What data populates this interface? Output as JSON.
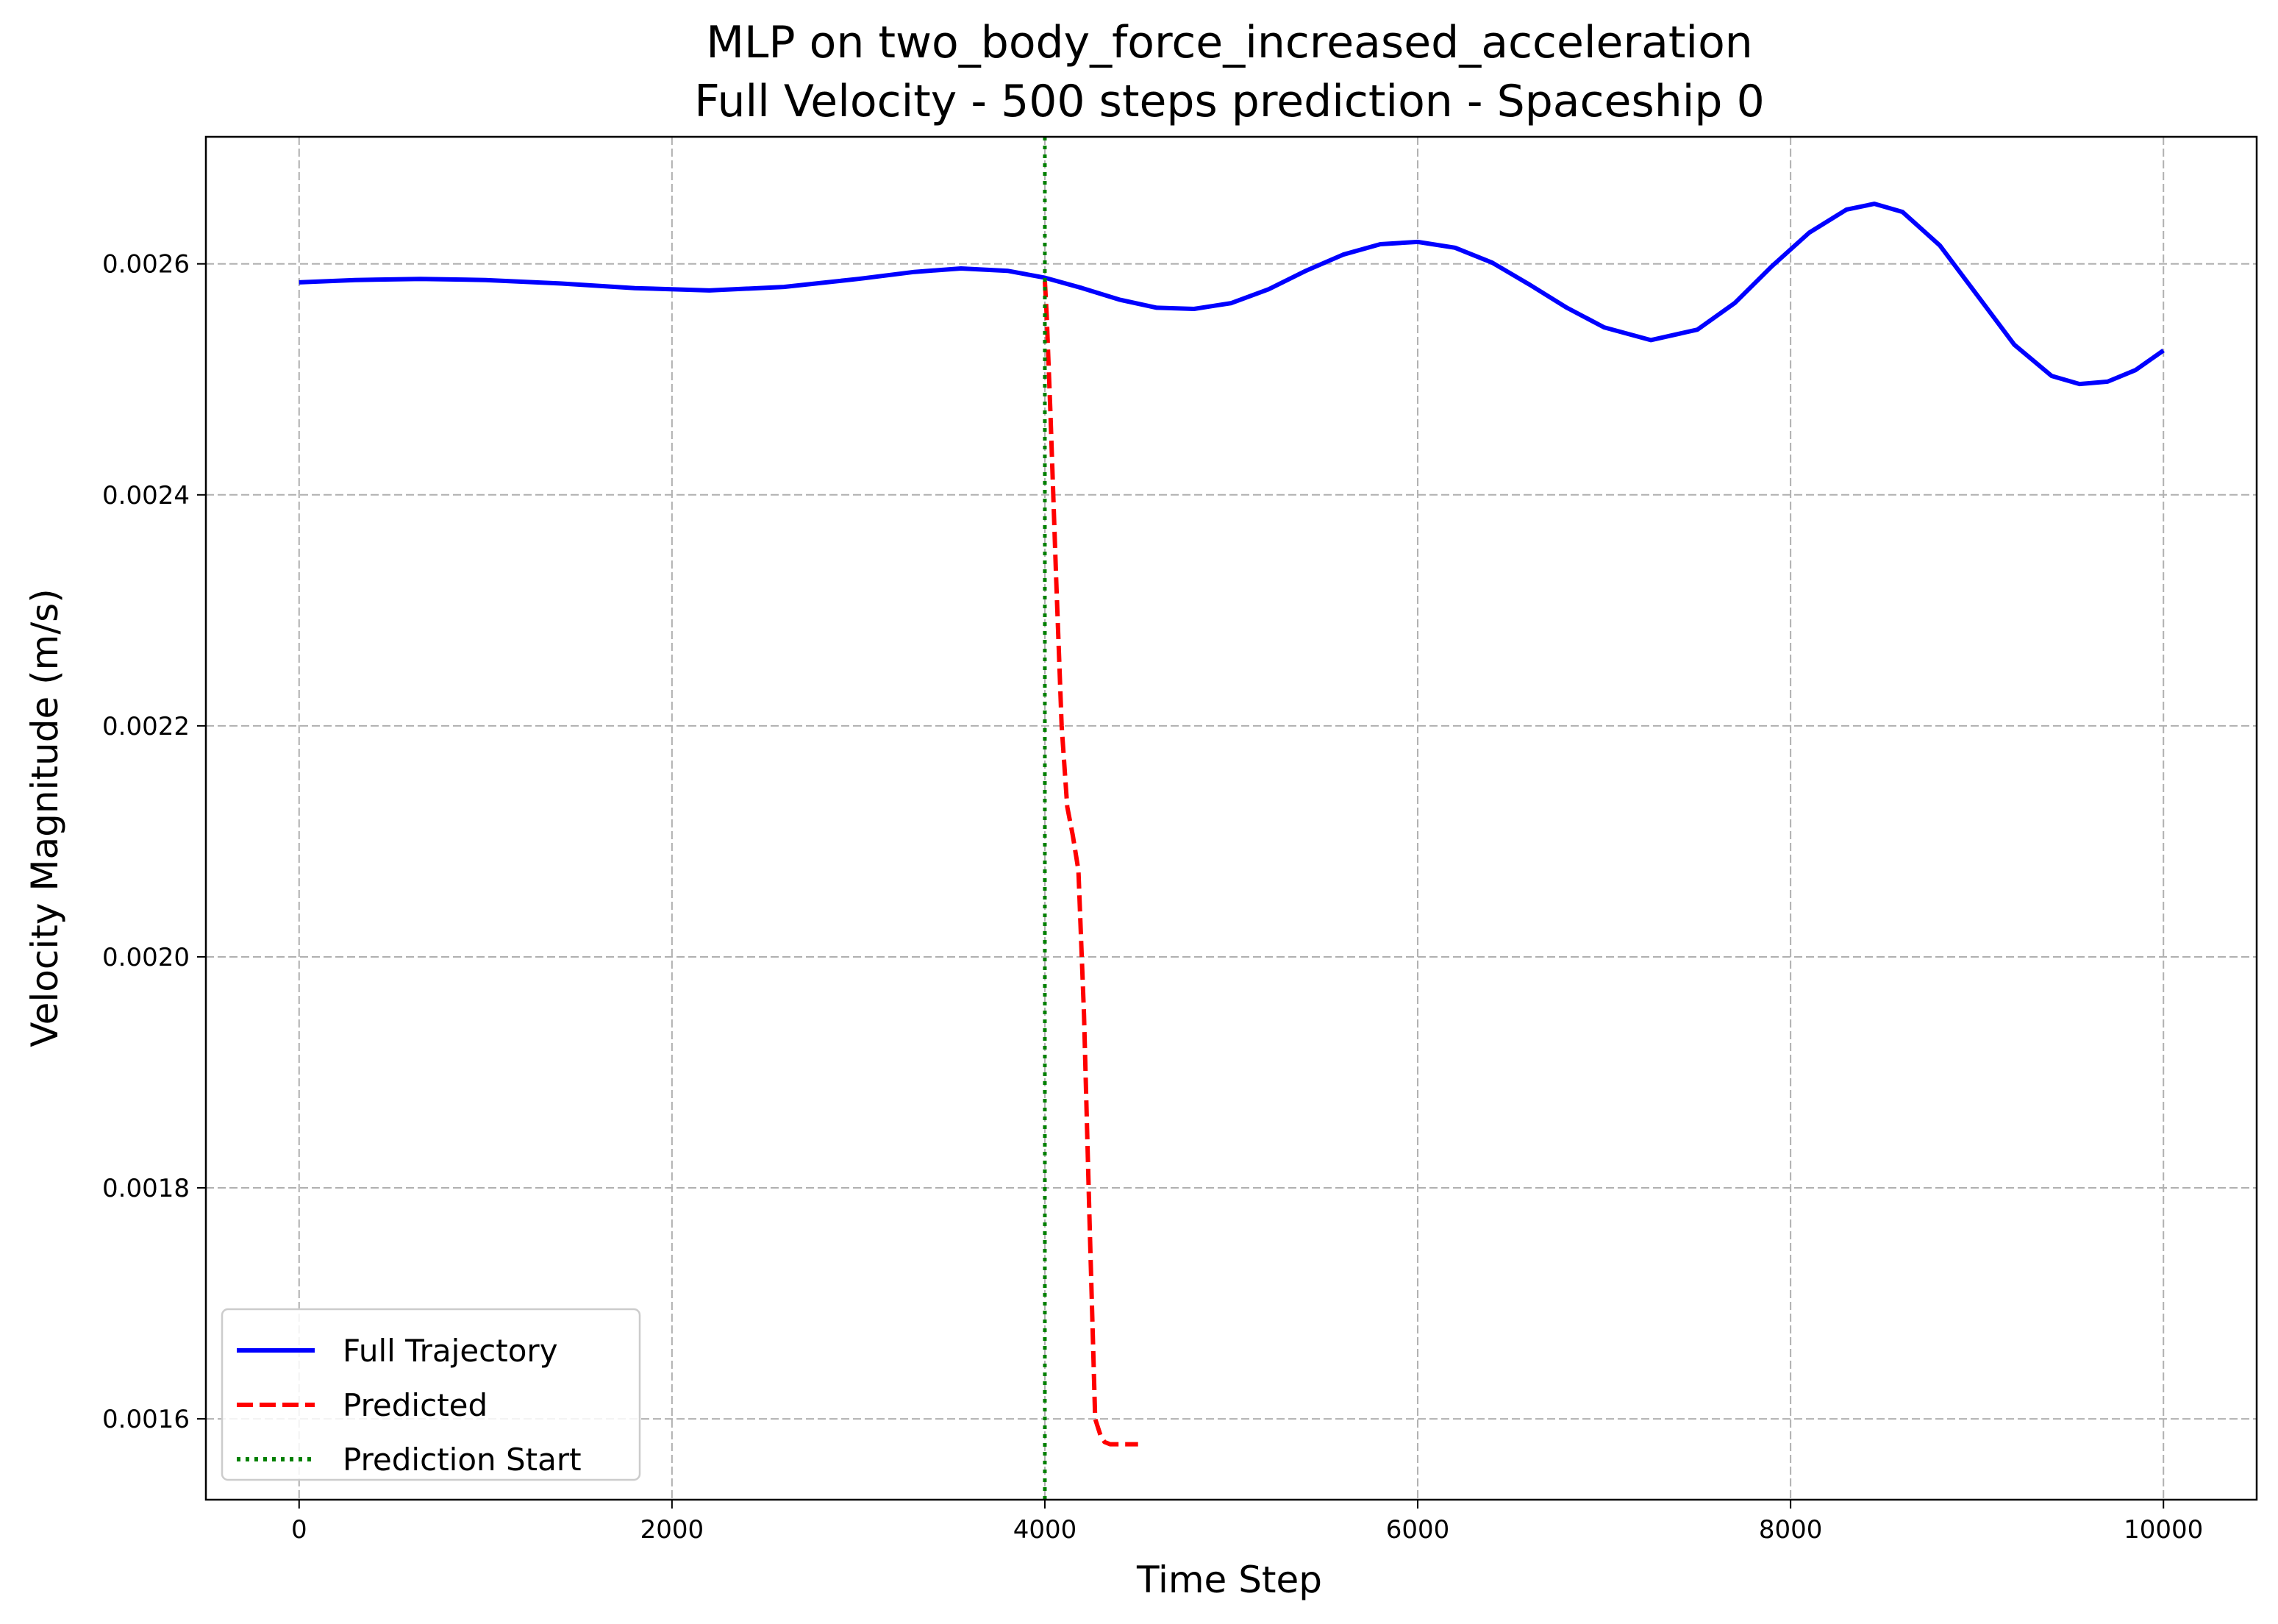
{
  "chart_data": {
    "type": "line",
    "title_line1": "MLP on two_body_force_increased_acceleration",
    "title_line2": "Full Velocity - 500 steps prediction - Spaceship 0",
    "xlabel": "Time Step",
    "ylabel": "Velocity Magnitude (m/s)",
    "xlim": [
      -500,
      10500
    ],
    "ylim": [
      0.00153,
      0.00271
    ],
    "xticks": [
      0,
      2000,
      4000,
      6000,
      8000,
      10000
    ],
    "xtick_labels": [
      "0",
      "2000",
      "4000",
      "6000",
      "8000",
      "10000"
    ],
    "yticks": [
      0.0016,
      0.0018,
      0.002,
      0.0022,
      0.0024,
      0.0026
    ],
    "ytick_labels": [
      "0.0016",
      "0.0018",
      "0.0020",
      "0.0022",
      "0.0024",
      "0.0026"
    ],
    "grid": true,
    "legend_position": "lower-left",
    "series": [
      {
        "name": "Full Trajectory",
        "color": "#0000ff",
        "style": "solid",
        "x": [
          0,
          300,
          650,
          1000,
          1400,
          1800,
          2200,
          2600,
          3000,
          3300,
          3550,
          3800,
          4000,
          4200,
          4400,
          4600,
          4800,
          5000,
          5200,
          5400,
          5600,
          5800,
          6000,
          6200,
          6400,
          6600,
          6800,
          7000,
          7250,
          7500,
          7700,
          7900,
          8100,
          8300,
          8450,
          8600,
          8800,
          9000,
          9200,
          9400,
          9550,
          9700,
          9850,
          10000
        ],
        "y": [
          0.002584,
          0.002586,
          0.002587,
          0.002586,
          0.002583,
          0.002579,
          0.002577,
          0.00258,
          0.002587,
          0.002593,
          0.002596,
          0.002594,
          0.002588,
          0.002579,
          0.002569,
          0.002562,
          0.002561,
          0.002566,
          0.002578,
          0.002594,
          0.002608,
          0.002617,
          0.002619,
          0.002614,
          0.002601,
          0.002582,
          0.002562,
          0.002545,
          0.002534,
          0.002543,
          0.002566,
          0.002598,
          0.002627,
          0.002647,
          0.002652,
          0.002645,
          0.002616,
          0.002573,
          0.00253,
          0.002503,
          0.002496,
          0.002498,
          0.002508,
          0.002525
        ]
      },
      {
        "name": "Predicted",
        "color": "#ff0000",
        "style": "dashed",
        "x": [
          4000,
          4010,
          4030,
          4060,
          4090,
          4120,
          4150,
          4180,
          4210,
          4240,
          4270,
          4300,
          4320,
          4350,
          4400,
          4450,
          4500
        ],
        "y": [
          0.002585,
          0.002555,
          0.00247,
          0.00233,
          0.0022,
          0.00213,
          0.002105,
          0.002075,
          0.00195,
          0.00177,
          0.0016,
          0.001585,
          0.00158,
          0.001578,
          0.001578,
          0.001578,
          0.001578
        ]
      },
      {
        "name": "Prediction Start",
        "color": "#008000",
        "style": "dotted",
        "vline_x": 4000
      }
    ]
  }
}
